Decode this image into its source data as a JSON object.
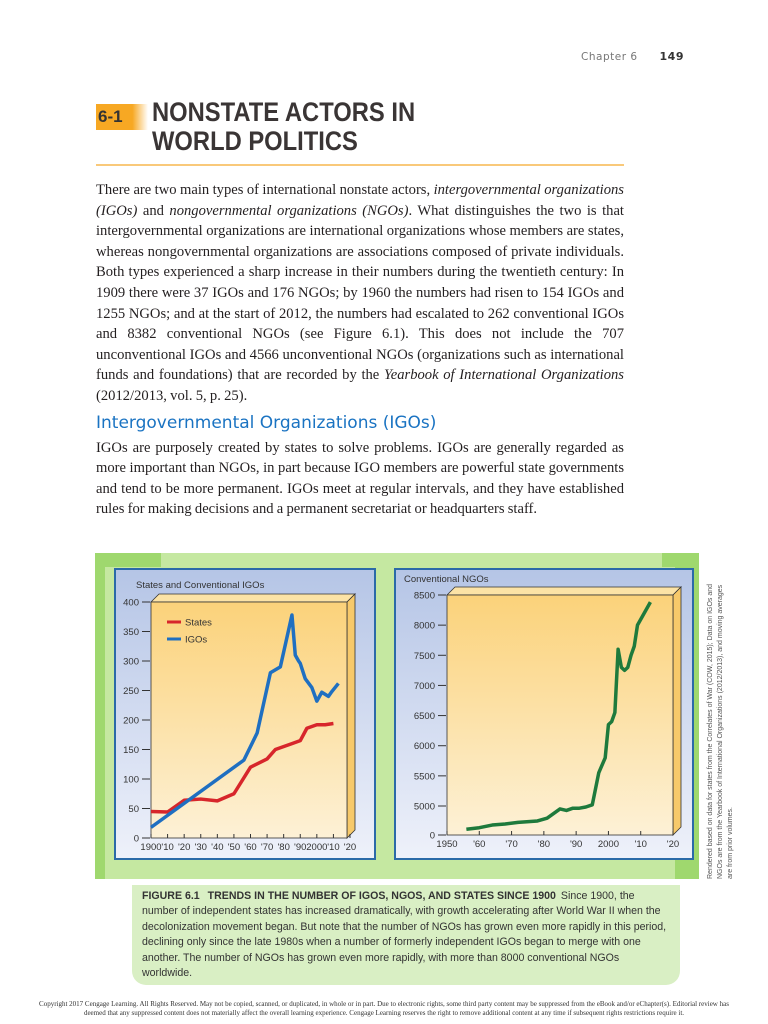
{
  "header": {
    "chapter": "Chapter 6",
    "page_number": "149"
  },
  "section": {
    "number": "6-1",
    "title_line1": "NONSTATE ACTORS IN",
    "title_line2": "WORLD POLITICS"
  },
  "paragraph1": [
    {
      "t": "There are two main types of international nonstate actors, "
    },
    {
      "t": "intergovernmental organizations (IGOs)",
      "i": true
    },
    {
      "t": " and "
    },
    {
      "t": "nongovernmental organizations (NGOs)",
      "i": true
    },
    {
      "t": ". What distinguishes the two is that intergovernmental organizations are international organizations whose members are states, whereas nongovernmental organizations are associations composed of private individuals. Both types experienced a sharp increase in their numbers during the twentieth century: In 1909 there were 37 IGOs and 176 NGOs; by 1960 the numbers had risen to 154 IGOs and 1255 NGOs; and at the start of 2012, the numbers had escalated to 262 conventional IGOs and 8382 conventional NGOs (see Figure 6.1). This does not include the 707 unconventional IGOs and 4566 unconventional NGOs (organizations such as international funds and foundations) that are recorded by the "
    },
    {
      "t": "Yearbook of International Organizations",
      "i": true
    },
    {
      "t": " (2012/2013, vol. 5, p. 25)."
    }
  ],
  "subheading": "Intergovernmental Organizations (IGOs)",
  "paragraph2": "IGOs are purposely created by states to solve problems. IGOs are generally regarded as more important than NGOs, in part because IGO members are powerful state governments and tend to be more permanent. IGOs meet at regular intervals, and they have established rules for making decisions and a permanent secretariat or headquarters staff.",
  "colors": {
    "states": "#d7262b",
    "igos": "#1f6fc1",
    "ngos": "#1e7a3c",
    "plot_bg_top": "#fbd27a",
    "plot_bg_bottom": "#fdf1d6",
    "frame_green": "#9fd86e",
    "band_green": "#c5e8a1"
  },
  "chart_data": [
    {
      "type": "line",
      "title": "States and Conventional IGOs",
      "xlabel": "",
      "ylabel": "",
      "xlim": [
        1900,
        2020
      ],
      "ylim": [
        0,
        400
      ],
      "x_tick_labels": [
        "1900",
        "'10",
        "'20",
        "'30",
        "'40",
        "'50",
        "'60",
        "'70",
        "'80",
        "'90",
        "2000",
        "'10",
        "'20"
      ],
      "y_tick_labels": [
        "0",
        "50",
        "100",
        "150",
        "200",
        "250",
        "300",
        "350",
        "400"
      ],
      "legend": "top-left",
      "series": [
        {
          "name": "States",
          "color": "#d7262b",
          "x": [
            1900,
            1910,
            1920,
            1930,
            1940,
            1950,
            1960,
            1970,
            1975,
            1985,
            1990,
            1994,
            2000,
            2005,
            2010
          ],
          "y": [
            45,
            44,
            64,
            66,
            63,
            75,
            120,
            134,
            150,
            160,
            165,
            186,
            192,
            192,
            194
          ]
        },
        {
          "name": "IGOs",
          "color": "#1f6fc1",
          "x": [
            1900,
            1956,
            1964,
            1972,
            1978,
            1985,
            1987,
            1989,
            1990,
            1993,
            1997,
            2000,
            2003,
            2007,
            2009,
            2013
          ],
          "y": [
            18,
            132,
            178,
            280,
            290,
            378,
            310,
            300,
            296,
            270,
            255,
            232,
            247,
            240,
            248,
            262
          ]
        }
      ]
    },
    {
      "type": "line",
      "title": "Conventional NGOs",
      "xlabel": "",
      "ylabel": "",
      "xlim": [
        1950,
        2020
      ],
      "ylim": [
        0,
        8500
      ],
      "y_axis_break": [
        0,
        5000
      ],
      "x_tick_labels": [
        "1950",
        "'60",
        "'70",
        "'80",
        "'90",
        "2000",
        "'10",
        "'20"
      ],
      "y_tick_labels": [
        "0",
        "5000",
        "5500",
        "6000",
        "6500",
        "7000",
        "7500",
        "8000",
        "8500"
      ],
      "series": [
        {
          "color": "#1e7a3c",
          "x": [
            1956,
            1960,
            1964,
            1968,
            1972,
            1978,
            1981,
            1985,
            1987,
            1989,
            1991,
            1993,
            1995,
            1997,
            1999,
            2000,
            2001,
            2002,
            2003,
            2004,
            2005,
            2006,
            2007,
            2008,
            2009,
            2013
          ],
          "y": [
            985,
            1255,
            1718,
            1899,
            2173,
            2420,
            2900,
            4500,
            4235,
            4621,
            4620,
            4830,
            5020,
            5550,
            5800,
            6350,
            6400,
            6550,
            7600,
            7300,
            7250,
            7300,
            7500,
            7650,
            8000,
            8382
          ]
        }
      ]
    }
  ],
  "caption": {
    "label": "FIGURE 6.1",
    "title": "TRENDS IN THE NUMBER OF IGOS, NGOS, AND STATES SINCE 1900",
    "text": "Since 1900, the number of independent states has increased dramatically, with growth accelerating after World War II when the decolonization movement began. But note that the number of NGOs has grown even more rapidly in this period, declining only since the late 1980s when a number of formerly independent IGOs began to merge with one another. The number of NGOs has grown even more rapidly, with more than 8000 conventional NGOs worldwide."
  },
  "source_note": "Rendered based on data for states from the Correlates of War (COW, 2015); Data on IGOs and NGOs are from the Yearbook of International Organizations (2012/2013), and moving averages are from prior volumes.",
  "copyright": "Copyright 2017 Cengage Learning. All Rights Reserved. May not be copied, scanned, or duplicated, in whole or in part. Due to electronic rights, some third party content may be suppressed from the eBook and/or eChapter(s). Editorial review has deemed that any suppressed content does not materially affect the overall learning experience. Cengage Learning reserves the right to remove additional content at any time if subsequent rights restrictions require it."
}
